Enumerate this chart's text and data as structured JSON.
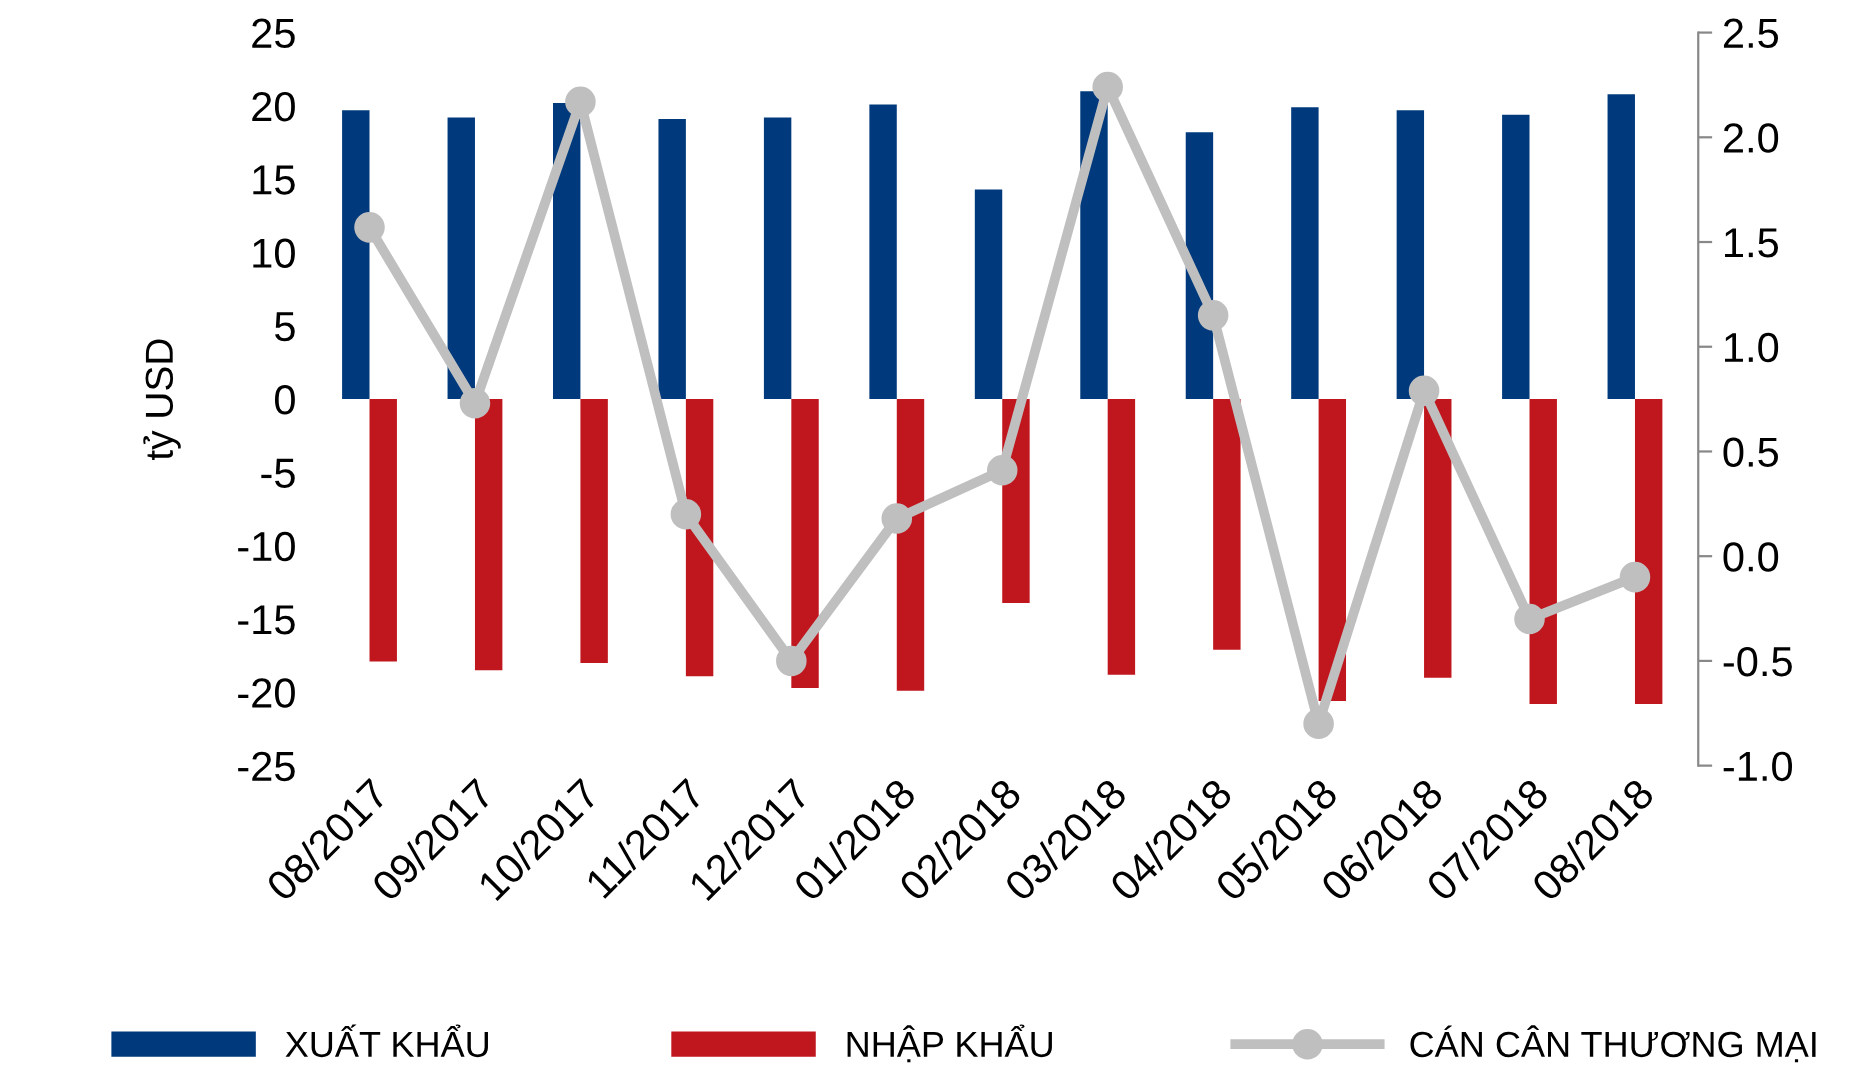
{
  "chart_data": {
    "type": "bar",
    "ylabel": "tỷ USD",
    "categories": [
      "08/2017",
      "09/2017",
      "10/2017",
      "11/2017",
      "12/2017",
      "01/2018",
      "02/2018",
      "03/2018",
      "04/2018",
      "05/2018",
      "06/2018",
      "07/2018",
      "08/2018"
    ],
    "series": [
      {
        "name": "XUẤT KHẨU",
        "color": "#003a7d",
        "values": [
          19.7,
          19.2,
          20.2,
          19.1,
          19.2,
          20.1,
          14.3,
          21.0,
          18.2,
          19.9,
          19.7,
          19.4,
          20.8
        ]
      },
      {
        "name": "NHẬP KHẨU",
        "color": "#c0161d",
        "values": [
          -17.9,
          -18.5,
          -18.0,
          -18.9,
          -19.7,
          -19.9,
          -13.9,
          -18.8,
          -17.1,
          -20.6,
          -19.0,
          -20.8,
          -20.8
        ]
      },
      {
        "name": "CÁN CÂN THƯƠNG MẠI",
        "type": "line",
        "axis": "y2",
        "color": "#bfbfbf",
        "marker": "circle",
        "values": [
          1.57,
          0.73,
          2.17,
          0.2,
          -0.5,
          0.18,
          0.41,
          2.24,
          1.15,
          -0.8,
          0.79,
          -0.3,
          -0.1
        ]
      }
    ],
    "ylim": [
      -25,
      25
    ],
    "yticks": [
      -25,
      -20,
      -15,
      -10,
      -5,
      0,
      5,
      10,
      15,
      20,
      25
    ],
    "y2lim": [
      -1.0,
      2.5
    ],
    "y2ticks": [
      {
        "value": -1.0,
        "label": "-1.0"
      },
      {
        "value": -0.5,
        "label": "-0.5"
      },
      {
        "value": 0.0,
        "label": "0.0"
      },
      {
        "value": 0.5,
        "label": "0.5"
      },
      {
        "value": 1.0,
        "label": "1.0"
      },
      {
        "value": 1.5,
        "label": "1.5"
      },
      {
        "value": 2.0,
        "label": "2.0"
      },
      {
        "value": 2.5,
        "label": "2.5"
      }
    ],
    "grid": false,
    "legend": "bottom"
  }
}
